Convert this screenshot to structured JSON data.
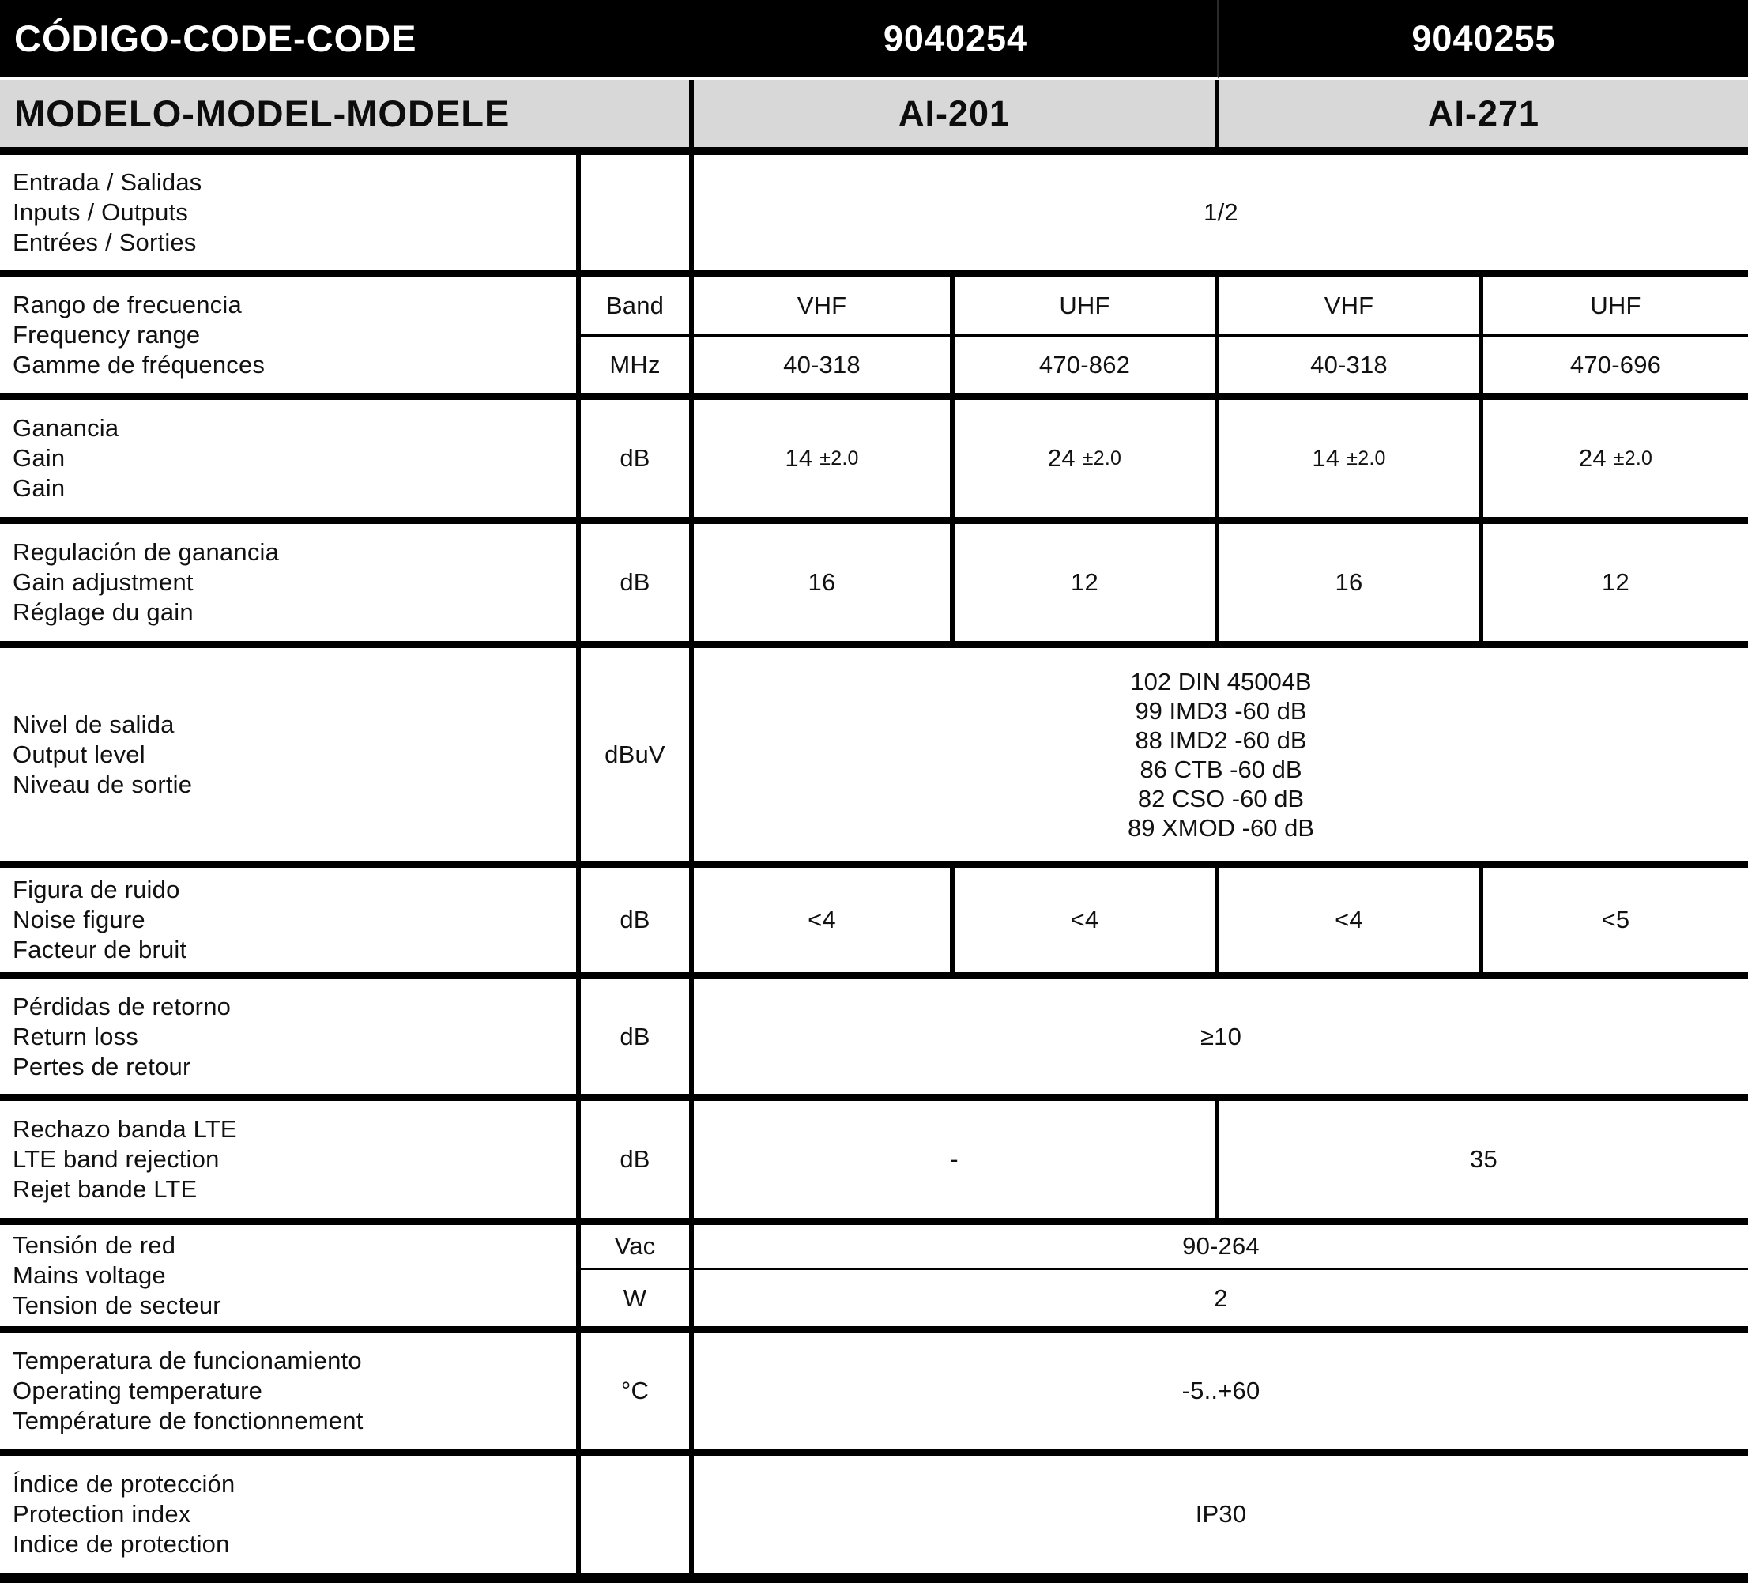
{
  "header": {
    "code_label": "CÓDIGO-CODE-CODE",
    "codes": [
      "9040254",
      "9040255"
    ],
    "model_label": "MODELO-MODEL-MODELE",
    "models": [
      "AI-201",
      "AI-271"
    ]
  },
  "rows": {
    "io": {
      "label": [
        "Entrada / Salidas",
        "Inputs / Outputs",
        "Entrées / Sorties"
      ],
      "unit": "",
      "value": "1/2"
    },
    "freq": {
      "label": [
        "Rango de frecuencia",
        "Frequency range",
        "Gamme de fréquences"
      ],
      "band_unit": "Band",
      "mhz_unit": "MHz",
      "bands": [
        "VHF",
        "UHF",
        "VHF",
        "UHF"
      ],
      "ranges": [
        "40-318",
        "470-862",
        "40-318",
        "470-696"
      ]
    },
    "gain": {
      "label": [
        "Ganancia",
        "Gain",
        "Gain"
      ],
      "unit": "dB",
      "values": [
        {
          "main": "14",
          "tol": "±2.0"
        },
        {
          "main": "24",
          "tol": "±2.0"
        },
        {
          "main": "14",
          "tol": "±2.0"
        },
        {
          "main": "24",
          "tol": "±2.0"
        }
      ]
    },
    "gain_adjust": {
      "label": [
        "Regulación de ganancia",
        "Gain adjustment",
        "Réglage du gain"
      ],
      "unit": "dB",
      "values": [
        "16",
        "12",
        "16",
        "12"
      ]
    },
    "output_level": {
      "label": [
        "Nivel de salida",
        "Output level",
        "Niveau de sortie"
      ],
      "unit": "dBuV",
      "lines": [
        "102 DIN 45004B",
        "99 IMD3 -60 dB",
        "88 IMD2 -60 dB",
        "86 CTB -60 dB",
        "82 CSO -60 dB",
        "89 XMOD -60 dB"
      ]
    },
    "noise": {
      "label": [
        "Figura de ruido",
        "Noise figure",
        "Facteur de bruit"
      ],
      "unit": "dB",
      "values": [
        "<4",
        "<4",
        "<4",
        "<5"
      ]
    },
    "return_loss": {
      "label": [
        "Pérdidas de retorno",
        "Return loss",
        "Pertes de retour"
      ],
      "unit": "dB",
      "value": "≥10"
    },
    "lte": {
      "label": [
        "Rechazo banda LTE",
        "LTE band rejection",
        "Rejet bande LTE"
      ],
      "unit": "dB",
      "values": [
        "-",
        "35"
      ]
    },
    "mains": {
      "label": [
        "Tensión de red",
        "Mains voltage",
        "Tension de secteur"
      ],
      "vac_unit": "Vac",
      "w_unit": "W",
      "vac_value": "90-264",
      "w_value": "2"
    },
    "temperature": {
      "label": [
        "Temperatura de funcionamiento",
        "Operating temperature",
        "Température de fonctionnement"
      ],
      "unit": "°C",
      "value": "-5..+60"
    },
    "protection": {
      "label": [
        "Índice de protección",
        "Protection index",
        "Indice de protection"
      ],
      "unit": "",
      "value": "IP30"
    }
  },
  "colors": {
    "header_bg": "#000000",
    "header_text": "#ffffff",
    "model_row_bg": "#d8d8d8",
    "body_text": "#111111",
    "rule_color": "#000000"
  }
}
